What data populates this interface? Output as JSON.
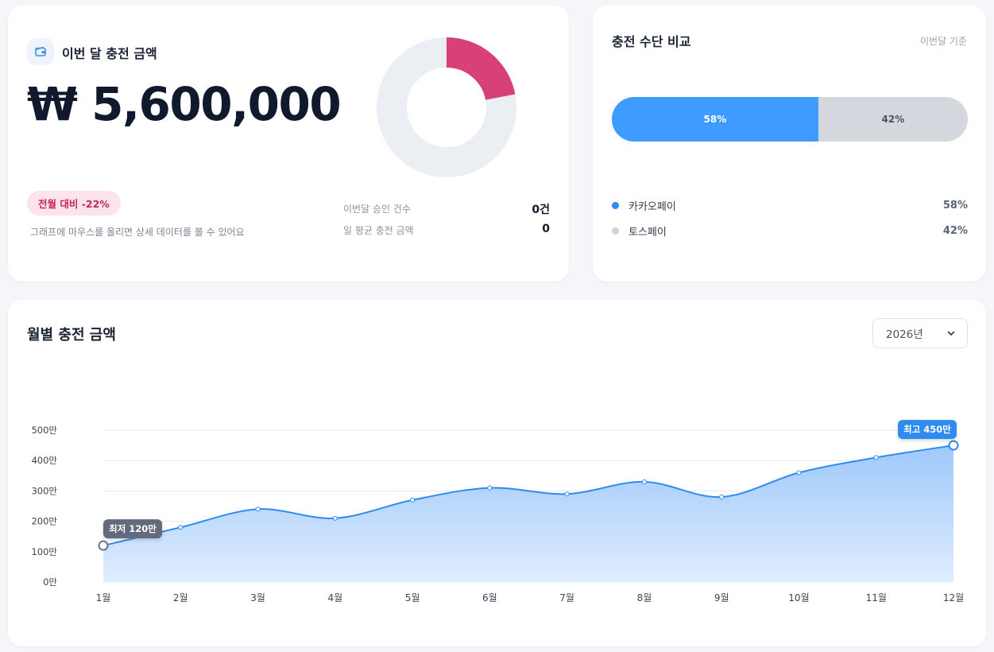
{
  "summary": {
    "title": "이번 달 충전 금액",
    "amount": "₩ 5,600,000",
    "change_badge": "전월 대비 -22%",
    "hint": "그래프에 마우스를 올리면 상세 데이터를 볼 수 있어요",
    "stats": [
      {
        "label": "이번달 승인 건수",
        "value": "0건"
      },
      {
        "label": "일 평균 충전 금액",
        "value": "0"
      }
    ],
    "donut": {
      "filled_fraction": 0.22,
      "fill_color": "#d8407a",
      "track_color": "#ebeff4"
    }
  },
  "compare": {
    "title": "충전 수단 비교",
    "basis": "이번달 기준",
    "segments": [
      {
        "name": "카카오페이",
        "percent": 58,
        "label": "58%",
        "color": "#3f9bff"
      },
      {
        "name": "토스페이",
        "percent": 42,
        "label": "42%",
        "color": "#d4d8de"
      }
    ]
  },
  "monthly": {
    "title": "월별 충전 금액",
    "year": "2026년",
    "icons": {
      "summary": "wallet-icon",
      "year_select": "chevron-down-icon"
    },
    "accent_color": "#2f8bf0"
  },
  "chart_data": {
    "type": "area",
    "x": [
      "1월",
      "2월",
      "3월",
      "4월",
      "5월",
      "6월",
      "7월",
      "8월",
      "9월",
      "10월",
      "11월",
      "12월"
    ],
    "values": [
      120,
      180,
      240,
      210,
      270,
      310,
      290,
      330,
      280,
      360,
      410,
      450
    ],
    "y_ticks": [
      0,
      100,
      200,
      300,
      400,
      500
    ],
    "y_tick_labels": [
      "0만",
      "100만",
      "200만",
      "300만",
      "400만",
      "500만"
    ],
    "ylim": [
      0,
      500
    ],
    "grid": true,
    "annotations": {
      "min": {
        "label": "최저 120만",
        "index": 0
      },
      "max": {
        "label": "최고 450만",
        "index": 11
      }
    }
  }
}
